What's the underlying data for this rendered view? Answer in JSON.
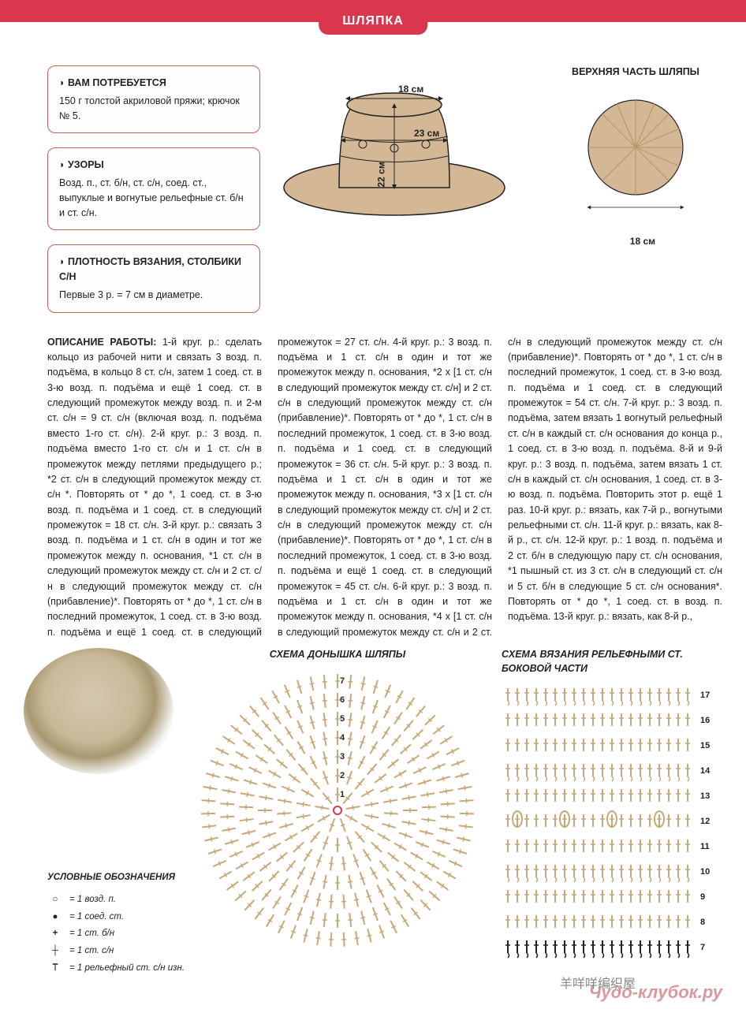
{
  "page_title": "ШЛЯПКА",
  "boxes": {
    "materials": {
      "title": "ВАМ ПОТРЕБУЕТСЯ",
      "text": "150 г толстой акриловой пряжи; крючок № 5."
    },
    "patterns": {
      "title": "УЗОРЫ",
      "text": "Возд. п., ст. б/н, ст. с/н, соед. ст., выпуклые и вогнутые рельефные ст. б/н и ст. с/н."
    },
    "gauge": {
      "title": "ПЛОТНОСТЬ ВЯЗАНИЯ, СТОЛБИКИ С/Н",
      "text": "Первые 3 р. = 7 см в диаметре."
    }
  },
  "top_diagram": {
    "label": "ВЕРХНЯЯ ЧАСТЬ ШЛЯПЫ",
    "dim_top": "18 см",
    "dim_mid": "23 см",
    "dim_height": "22 см",
    "dim_circle": "18 см",
    "hat_fill": "#d4b896",
    "hat_stroke": "#222222"
  },
  "description_label": "ОПИСАНИЕ РАБОТЫ:",
  "description": "1-й круг. р.: сделать кольцо из рабочей нити и связать 3 возд. п. подъёма, в кольцо 8 ст. с/н, затем 1 соед. ст. в 3-ю возд. п. подъёма и ещё 1 соед. ст. в следующий промежуток между возд. п. и 2-м ст. с/н = 9 ст. с/н (включая возд. п. подъёма вместо 1-го ст. с/н). 2-й круг. р.: 3 возд. п. подъёма вместо 1-го ст. с/н и 1 ст. с/н в промежуток между петлями предыдущего р.; *2 ст. с/н в следующий промежуток между ст. с/н *. Повторять от * до *, 1 соед. ст. в 3-ю возд. п. подъёма и 1 соед. ст. в следующий промежуток = 18 ст. с/н. 3-й круг. р.: связать 3 возд. п. подъёма и 1 ст. с/н в один и тот же промежуток между п. основания, *1 ст. с/н в следующий промежуток между ст. с/н и 2 ст. с/н в следующий промежуток между ст. с/н (прибавление)*. Повторять от * до *, 1 ст. с/н в последний промежуток, 1 соед. ст. в 3-ю возд. п. подъёма и ещё 1 соед. ст. в следующий промежуток = 27 ст. с/н. 4-й круг. р.: 3 возд. п. подъёма и 1 ст. с/н в один и тот же промежуток между п. основания, *2 х [1 ст. с/н в следующий промежуток между ст. с/н] и 2 ст. с/н в следующий промежуток между ст. с/н (прибавление)*. Повторять от * до *, 1 ст. с/н в последний промежуток, 1 соед. ст. в 3-ю возд. п. подъёма и 1 соед. ст. в следующий промежуток = 36 ст. с/н. 5-й круг. р.: 3 возд. п. подъёма и 1 ст. с/н в один и тот же промежуток между п. основания, *3 х [1 ст. с/н в следующий промежуток между ст. с/н] и 2 ст. с/н в следующий промежуток между ст. с/н (прибавление)*. Повторять от * до *, 1 ст. с/н в последний промежуток, 1 соед. ст. в 3-ю возд. п. подъёма и ещё 1 соед. ст. в следующий промежуток = 45 ст. с/н. 6-й круг. р.: 3 возд. п. подъёма и 1 ст. с/н в один и тот же промежуток между п. основания, *4 х [1 ст. с/н в следующий промежуток между ст. с/н и 2 ст. с/н в следующий промежуток между ст. с/н (прибавление)*. Повторять от * до *, 1 ст. с/н в последний промежуток, 1 соед. ст. в 3-ю возд. п. подъёма и 1 соед. ст. в следующий промежуток = 54 ст. с/н. 7-й круг. р.: 3 возд. п. подъёма, затем вязать 1 вогнутый рельефный ст. с/н в каждый ст. с/н основания до конца р., 1 соед. ст. в 3-ю возд. п. подъёма. 8-й и 9-й круг. р.: 3 возд. п. подъёма, затем вязать 1 ст. с/н в каждый ст. с/н основания, 1 соед. ст. в 3-ю возд. п. подъёма. Повторить этот р. ещё 1 раз. 10-й круг. р.: вязать, как 7-й р., вогнутыми рельефными ст. с/н. 11-й круг. р.: вязать, как 8-й р., ст. с/н. 12-й круг. р.: 1 возд. п. подъёма и 2 ст. б/н в следующую пару ст. с/н основания, *1 пышный ст. из 3 ст. с/н в следующий ст. с/н и 5 ст. б/н в следующие 5 ст. с/н основания*. Повторять от * до *, 1 соед. ст. в возд. п. подъёма. 13-й круг. р.: вязать, как 8-й р.,",
  "schemas": {
    "crown_title": "СХЕМА ДОНЫШКА ШЛЯПЫ",
    "side_title": "СХЕМА ВЯЗАНИЯ РЕЛЬЕФНЫМИ СТ. БОКОВОЙ ЧАСТИ",
    "crown_rows": [
      "1",
      "2",
      "3",
      "4",
      "5",
      "6",
      "7"
    ],
    "side_rows": [
      "7",
      "8",
      "9",
      "10",
      "11",
      "12",
      "13",
      "14",
      "15",
      "16",
      "17"
    ],
    "symbol_color": "#c8a878",
    "accent_color": "#222222"
  },
  "legend": {
    "title": "УСЛОВНЫЕ ОБОЗНАЧЕНИЯ",
    "items": [
      {
        "sym": "○",
        "text": "= 1 возд. п."
      },
      {
        "sym": "●",
        "text": "= 1 соед. ст."
      },
      {
        "sym": "+",
        "text": "= 1 ст. б/н"
      },
      {
        "sym": "┼",
        "text": "= 1 ст. с/н"
      },
      {
        "sym": "⟙",
        "text": "= 1 рельефный ст. с/н изн."
      }
    ]
  },
  "watermark": "Чудо-клубок.ру",
  "wechat": "羊咩咩编织屋"
}
